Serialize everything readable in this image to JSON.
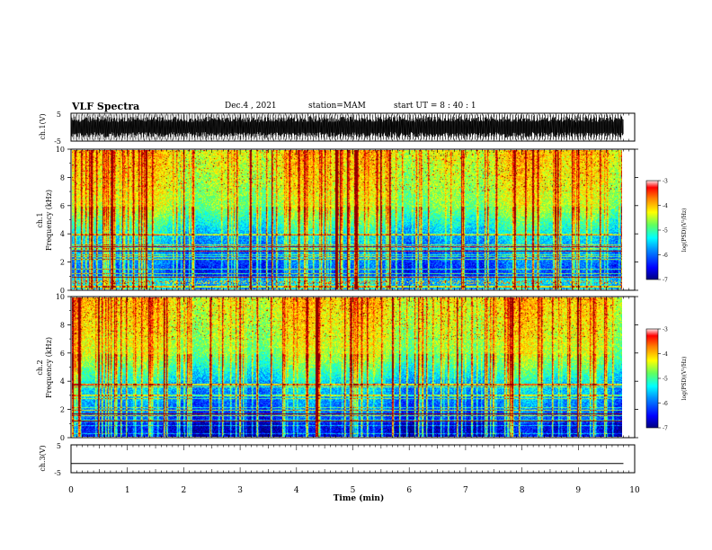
{
  "header": {
    "title": "VLF Spectra",
    "date": "Dec.4 , 2021",
    "station": "station=MAM",
    "start": "start UT = 8 : 40 : 1"
  },
  "chart_data": [
    {
      "type": "line",
      "name": "ch1-waveform",
      "ylabel": "ch.1(V)",
      "ylim": [
        -5,
        5
      ],
      "y_ticklabels": [
        "5",
        "-5"
      ],
      "xlim": [
        0,
        10
      ],
      "note_values": "dense oscillation spanning roughly -4 to 4 V"
    },
    {
      "type": "heatmap",
      "name": "ch1-spectrogram",
      "ylabel_line1": "ch.1",
      "ylabel_line2": "Frequency (kHz)",
      "ylim": [
        0,
        10
      ],
      "y_ticks": [
        0,
        2,
        4,
        6,
        8,
        10
      ],
      "xlim": [
        0,
        9.8
      ],
      "colorbar": {
        "label": "log(PSD)(V²/Hz)",
        "range": [
          -7,
          -3
        ],
        "ticks": [
          "-3",
          "-4",
          "-5",
          "-6",
          "-7"
        ]
      }
    },
    {
      "type": "heatmap",
      "name": "ch2-spectrogram",
      "ylabel_line1": "ch.2",
      "ylabel_line2": "Frequency (kHz)",
      "ylim": [
        0,
        10
      ],
      "y_ticks": [
        0,
        2,
        4,
        6,
        8,
        10
      ],
      "xlim": [
        0,
        9.8
      ],
      "colorbar": {
        "label": "log(PSD)(V²/Hz)",
        "range": [
          -7,
          -3
        ],
        "ticks": [
          "-3",
          "-4",
          "-5",
          "-6",
          "-7"
        ]
      }
    },
    {
      "type": "line",
      "name": "ch3-waveform",
      "ylabel": "ch.3(V)",
      "ylim": [
        -5,
        5
      ],
      "y_ticklabels": [
        "5",
        "-5"
      ],
      "xlim": [
        0,
        10
      ],
      "x": [
        0,
        9.8
      ],
      "values": [
        -1.7,
        -1.7
      ]
    }
  ],
  "xaxis": {
    "label": "Time (min)",
    "ticks": [
      "0",
      "1",
      "2",
      "3",
      "4",
      "5",
      "6",
      "7",
      "8",
      "9",
      "10"
    ]
  },
  "colors": {
    "colormap": [
      "#00007f",
      "#0000ff",
      "#0080ff",
      "#00ffff",
      "#80ff80",
      "#ffff00",
      "#ff8000",
      "#ff0000",
      "#800000"
    ]
  }
}
